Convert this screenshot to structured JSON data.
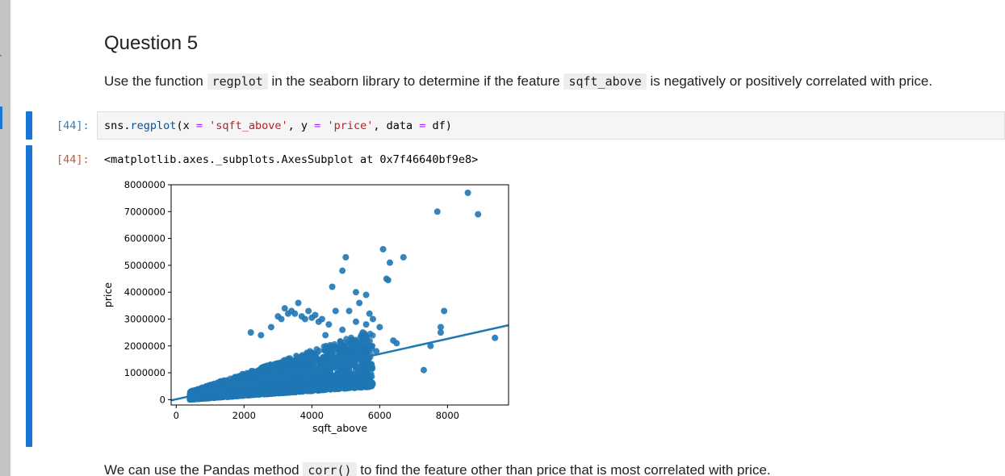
{
  "markdown_cell": {
    "heading": "Question 5",
    "line_parts": {
      "before": "Use the function ",
      "code1": "regplot",
      "middle": " in the seaborn library to determine if the feature ",
      "code2": "sqft_above",
      "after": " is negatively or positively correlated with price."
    }
  },
  "code_cell": {
    "input_prompt": "[44]:",
    "output_prompt": "[44]:",
    "code_tokens": {
      "t1": "sns",
      "t2": ".",
      "t3": "regplot",
      "t4": "(x ",
      "t5": "=",
      "t6": " ",
      "t7": "'sqft_above'",
      "t8": ", y ",
      "t9": "=",
      "t10": " ",
      "t11": "'price'",
      "t12": ", data ",
      "t13": "=",
      "t14": " df)"
    },
    "output_repr": "<matplotlib.axes._subplots.AxesSubplot at 0x7f46640bf9e8>"
  },
  "next_markdown": {
    "before": "We can use the Pandas method ",
    "code": "corr()",
    "after": " to find the feature other than price that is most correlated with price."
  },
  "colors": {
    "accent": "#1976d2",
    "series": "#1f77b4",
    "input_prompt": "#307fc1",
    "output_prompt": "#bf5b3d"
  },
  "chart_data": {
    "type": "scatter",
    "xlabel": "sqft_above",
    "ylabel": "price",
    "xlim": [
      -150,
      9800
    ],
    "ylim": [
      -200000,
      8000000
    ],
    "x_ticks": [
      0,
      2000,
      4000,
      6000,
      8000
    ],
    "x_tick_labels": [
      "0",
      "2000",
      "4000",
      "6000",
      "8000"
    ],
    "y_ticks": [
      0,
      1000000,
      2000000,
      3000000,
      4000000,
      5000000,
      6000000,
      7000000,
      8000000
    ],
    "y_tick_labels": [
      "0",
      "1000000",
      "2000000",
      "3000000",
      "4000000",
      "5000000",
      "6000000",
      "7000000",
      "8000000"
    ],
    "grid": false,
    "regression_line": {
      "x": [
        -150,
        9800
      ],
      "y": [
        -30000,
        2770000
      ]
    },
    "points": {
      "x": [
        8600,
        7700,
        8900,
        6100,
        6700,
        6300,
        5000,
        4900,
        6200,
        6250,
        4600,
        5300,
        5400,
        5600,
        7900,
        7800,
        7800,
        9400,
        7300,
        7500,
        3600,
        3400,
        3300,
        3000,
        3100,
        3200,
        3500,
        3700,
        3800,
        3900,
        4000,
        4100,
        4200,
        4300,
        4500,
        4700,
        4900,
        5100,
        5300,
        5500,
        5600,
        5700,
        5800,
        6000,
        6400,
        6500,
        5900,
        5200,
        4400,
        2200,
        2500,
        2800,
        4800,
        5000
      ],
      "y": [
        7700000,
        7000000,
        6900000,
        5600000,
        5300000,
        5100000,
        5300000,
        4800000,
        4500000,
        4450000,
        4200000,
        4000000,
        3600000,
        3900000,
        3300000,
        2700000,
        2500000,
        2300000,
        1100000,
        2000000,
        3600000,
        3300000,
        3200000,
        3100000,
        3000000,
        3400000,
        3200000,
        3100000,
        3000000,
        3300000,
        3050000,
        3150000,
        2900000,
        3000000,
        2800000,
        3300000,
        2600000,
        3300000,
        2900000,
        2500000,
        2800000,
        3200000,
        3000000,
        2700000,
        2200000,
        2100000,
        1800000,
        1500000,
        2400000,
        2500000,
        2400000,
        2700000,
        1300000,
        1600000
      ]
    },
    "dense_cloud": {
      "x_range": [
        400,
        5800
      ],
      "y_base": [
        0,
        800000
      ],
      "y_upper_edge": [
        300000,
        2600000
      ]
    }
  }
}
